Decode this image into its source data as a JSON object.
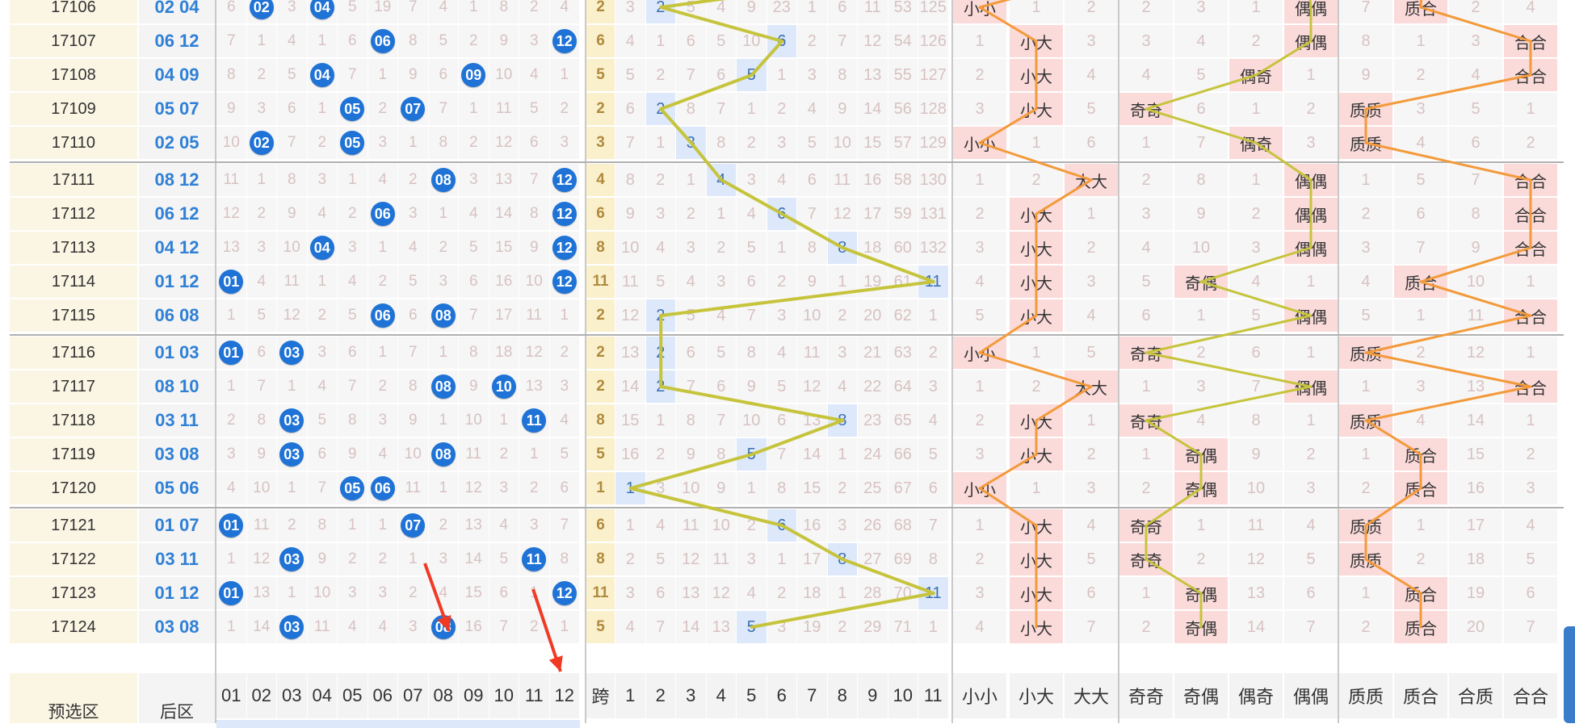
{
  "header_labels": {
    "numbers": [
      "01",
      "02",
      "03",
      "04",
      "05",
      "06",
      "07",
      "08",
      "09",
      "10",
      "11",
      "12"
    ],
    "span": "跨",
    "dist": [
      "1",
      "2",
      "3",
      "4",
      "5",
      "6",
      "7",
      "8",
      "9",
      "10",
      "11"
    ],
    "size": [
      "小小",
      "小大",
      "大大"
    ],
    "odd": [
      "奇奇",
      "奇偶",
      "偶奇",
      "偶偶"
    ],
    "prime": [
      "质质",
      "质合",
      "合质",
      "合合"
    ],
    "preselect": "预选区",
    "back_area": "后区"
  },
  "rows": [
    {
      "issue": "17106",
      "back": "02 04",
      "balls": [
        2,
        4
      ],
      "nums": [
        "6",
        "02",
        "3",
        "04",
        "5",
        "19",
        "7",
        "4",
        "1",
        "8",
        "2",
        "4"
      ],
      "span": "2",
      "hit": 2,
      "dist": [
        "3",
        "2",
        "5",
        "4",
        "9",
        "23",
        "1",
        "6",
        "11",
        "53",
        "125"
      ],
      "size_sel": 0,
      "size": [
        "小小",
        "1",
        "2"
      ],
      "odd_sel": 3,
      "odd": [
        "2",
        "3",
        "1",
        "偶偶"
      ],
      "prime_sel": 1,
      "prime": [
        "7",
        "质合",
        "2",
        "4"
      ]
    },
    {
      "issue": "17107",
      "back": "06 12",
      "balls": [
        6,
        12
      ],
      "nums": [
        "7",
        "1",
        "4",
        "1",
        "6",
        "06",
        "8",
        "5",
        "2",
        "9",
        "3",
        "12"
      ],
      "span": "6",
      "hit": 6,
      "dist": [
        "4",
        "1",
        "6",
        "5",
        "10",
        "6",
        "2",
        "7",
        "12",
        "54",
        "126"
      ],
      "size_sel": 1,
      "size": [
        "1",
        "小大",
        "3"
      ],
      "odd_sel": 3,
      "odd": [
        "3",
        "4",
        "2",
        "偶偶"
      ],
      "prime_sel": 3,
      "prime": [
        "8",
        "1",
        "3",
        "合合"
      ]
    },
    {
      "issue": "17108",
      "back": "04 09",
      "balls": [
        4,
        9
      ],
      "nums": [
        "8",
        "2",
        "5",
        "04",
        "7",
        "1",
        "9",
        "6",
        "09",
        "10",
        "4",
        "1"
      ],
      "span": "5",
      "hit": 5,
      "dist": [
        "5",
        "2",
        "7",
        "6",
        "5",
        "1",
        "3",
        "8",
        "13",
        "55",
        "127"
      ],
      "size_sel": 1,
      "size": [
        "2",
        "小大",
        "4"
      ],
      "odd_sel": 2,
      "odd": [
        "4",
        "5",
        "偶奇",
        "1"
      ],
      "prime_sel": 3,
      "prime": [
        "9",
        "2",
        "4",
        "合合"
      ]
    },
    {
      "issue": "17109",
      "back": "05 07",
      "balls": [
        5,
        7
      ],
      "nums": [
        "9",
        "3",
        "6",
        "1",
        "05",
        "2",
        "07",
        "7",
        "1",
        "11",
        "5",
        "2"
      ],
      "span": "2",
      "hit": 2,
      "dist": [
        "6",
        "2",
        "8",
        "7",
        "1",
        "2",
        "4",
        "9",
        "14",
        "56",
        "128"
      ],
      "size_sel": 1,
      "size": [
        "3",
        "小大",
        "5"
      ],
      "odd_sel": 0,
      "odd": [
        "奇奇",
        "6",
        "1",
        "2"
      ],
      "prime_sel": 0,
      "prime": [
        "质质",
        "3",
        "5",
        "1"
      ]
    },
    {
      "issue": "17110",
      "back": "02 05",
      "balls": [
        2,
        5
      ],
      "nums": [
        "10",
        "02",
        "7",
        "2",
        "05",
        "3",
        "1",
        "8",
        "2",
        "12",
        "6",
        "3"
      ],
      "span": "3",
      "hit": 3,
      "dist": [
        "7",
        "1",
        "3",
        "8",
        "2",
        "3",
        "5",
        "10",
        "15",
        "57",
        "129"
      ],
      "size_sel": 0,
      "size": [
        "小小",
        "1",
        "6"
      ],
      "odd_sel": 2,
      "odd": [
        "1",
        "7",
        "偶奇",
        "3"
      ],
      "prime_sel": 0,
      "prime": [
        "质质",
        "4",
        "6",
        "2"
      ]
    },
    {
      "issue": "17111",
      "back": "08 12",
      "balls": [
        8,
        12
      ],
      "nums": [
        "11",
        "1",
        "8",
        "3",
        "1",
        "4",
        "2",
        "08",
        "3",
        "13",
        "7",
        "12"
      ],
      "span": "4",
      "hit": 4,
      "dist": [
        "8",
        "2",
        "1",
        "4",
        "3",
        "4",
        "6",
        "11",
        "16",
        "58",
        "130"
      ],
      "size_sel": 2,
      "size": [
        "1",
        "2",
        "大大"
      ],
      "odd_sel": 3,
      "odd": [
        "2",
        "8",
        "1",
        "偶偶"
      ],
      "prime_sel": 3,
      "prime": [
        "1",
        "5",
        "7",
        "合合"
      ]
    },
    {
      "issue": "17112",
      "back": "06 12",
      "balls": [
        6,
        12
      ],
      "nums": [
        "12",
        "2",
        "9",
        "4",
        "2",
        "06",
        "3",
        "1",
        "4",
        "14",
        "8",
        "12"
      ],
      "span": "6",
      "hit": 6,
      "dist": [
        "9",
        "3",
        "2",
        "1",
        "4",
        "6",
        "7",
        "12",
        "17",
        "59",
        "131"
      ],
      "size_sel": 1,
      "size": [
        "2",
        "小大",
        "1"
      ],
      "odd_sel": 3,
      "odd": [
        "3",
        "9",
        "2",
        "偶偶"
      ],
      "prime_sel": 3,
      "prime": [
        "2",
        "6",
        "8",
        "合合"
      ]
    },
    {
      "issue": "17113",
      "back": "04 12",
      "balls": [
        4,
        12
      ],
      "nums": [
        "13",
        "3",
        "10",
        "04",
        "3",
        "1",
        "4",
        "2",
        "5",
        "15",
        "9",
        "12"
      ],
      "span": "8",
      "hit": 8,
      "dist": [
        "10",
        "4",
        "3",
        "2",
        "5",
        "1",
        "8",
        "8",
        "18",
        "60",
        "132"
      ],
      "size_sel": 1,
      "size": [
        "3",
        "小大",
        "2"
      ],
      "odd_sel": 3,
      "odd": [
        "4",
        "10",
        "3",
        "偶偶"
      ],
      "prime_sel": 3,
      "prime": [
        "3",
        "7",
        "9",
        "合合"
      ]
    },
    {
      "issue": "17114",
      "back": "01 12",
      "balls": [
        1,
        12
      ],
      "nums": [
        "01",
        "4",
        "11",
        "1",
        "4",
        "2",
        "5",
        "3",
        "6",
        "16",
        "10",
        "12"
      ],
      "span": "11",
      "hit": 11,
      "dist": [
        "11",
        "5",
        "4",
        "3",
        "6",
        "2",
        "9",
        "1",
        "19",
        "61",
        "11"
      ],
      "size_sel": 1,
      "size": [
        "4",
        "小大",
        "3"
      ],
      "odd_sel": 1,
      "odd": [
        "5",
        "奇偶",
        "4",
        "1"
      ],
      "prime_sel": 1,
      "prime": [
        "4",
        "质合",
        "10",
        "1"
      ]
    },
    {
      "issue": "17115",
      "back": "06 08",
      "balls": [
        6,
        8
      ],
      "nums": [
        "1",
        "5",
        "12",
        "2",
        "5",
        "06",
        "6",
        "08",
        "7",
        "17",
        "11",
        "1"
      ],
      "span": "2",
      "hit": 2,
      "dist": [
        "12",
        "2",
        "5",
        "4",
        "7",
        "3",
        "10",
        "2",
        "20",
        "62",
        "1"
      ],
      "size_sel": 1,
      "size": [
        "5",
        "小大",
        "4"
      ],
      "odd_sel": 3,
      "odd": [
        "6",
        "1",
        "5",
        "偶偶"
      ],
      "prime_sel": 3,
      "prime": [
        "5",
        "1",
        "11",
        "合合"
      ]
    },
    {
      "issue": "17116",
      "back": "01 03",
      "balls": [
        1,
        3
      ],
      "nums": [
        "01",
        "6",
        "03",
        "3",
        "6",
        "1",
        "7",
        "1",
        "8",
        "18",
        "12",
        "2"
      ],
      "span": "2",
      "hit": 2,
      "dist": [
        "13",
        "2",
        "6",
        "5",
        "8",
        "4",
        "11",
        "3",
        "21",
        "63",
        "2"
      ],
      "size_sel": 0,
      "size": [
        "小小",
        "1",
        "5"
      ],
      "odd_sel": 0,
      "odd": [
        "奇奇",
        "2",
        "6",
        "1"
      ],
      "prime_sel": 0,
      "prime": [
        "质质",
        "2",
        "12",
        "1"
      ]
    },
    {
      "issue": "17117",
      "back": "08 10",
      "balls": [
        8,
        10
      ],
      "nums": [
        "1",
        "7",
        "1",
        "4",
        "7",
        "2",
        "8",
        "08",
        "9",
        "10",
        "13",
        "3"
      ],
      "span": "2",
      "hit": 2,
      "dist": [
        "14",
        "2",
        "7",
        "6",
        "9",
        "5",
        "12",
        "4",
        "22",
        "64",
        "3"
      ],
      "size_sel": 2,
      "size": [
        "1",
        "2",
        "大大"
      ],
      "odd_sel": 3,
      "odd": [
        "1",
        "3",
        "7",
        "偶偶"
      ],
      "prime_sel": 3,
      "prime": [
        "1",
        "3",
        "13",
        "合合"
      ]
    },
    {
      "issue": "17118",
      "back": "03 11",
      "balls": [
        3,
        11
      ],
      "nums": [
        "2",
        "8",
        "03",
        "5",
        "8",
        "3",
        "9",
        "1",
        "10",
        "1",
        "11",
        "4"
      ],
      "span": "8",
      "hit": 8,
      "dist": [
        "15",
        "1",
        "8",
        "7",
        "10",
        "6",
        "13",
        "8",
        "23",
        "65",
        "4"
      ],
      "size_sel": 1,
      "size": [
        "2",
        "小大",
        "1"
      ],
      "odd_sel": 0,
      "odd": [
        "奇奇",
        "4",
        "8",
        "1"
      ],
      "prime_sel": 0,
      "prime": [
        "质质",
        "4",
        "14",
        "1"
      ]
    },
    {
      "issue": "17119",
      "back": "03 08",
      "balls": [
        3,
        8
      ],
      "nums": [
        "3",
        "9",
        "03",
        "6",
        "9",
        "4",
        "10",
        "08",
        "11",
        "2",
        "1",
        "5"
      ],
      "span": "5",
      "hit": 5,
      "dist": [
        "16",
        "2",
        "9",
        "8",
        "5",
        "7",
        "14",
        "1",
        "24",
        "66",
        "5"
      ],
      "size_sel": 1,
      "size": [
        "3",
        "小大",
        "2"
      ],
      "odd_sel": 1,
      "odd": [
        "1",
        "奇偶",
        "9",
        "2"
      ],
      "prime_sel": 1,
      "prime": [
        "1",
        "质合",
        "15",
        "2"
      ]
    },
    {
      "issue": "17120",
      "back": "05 06",
      "balls": [
        5,
        6
      ],
      "nums": [
        "4",
        "10",
        "1",
        "7",
        "05",
        "06",
        "11",
        "1",
        "12",
        "3",
        "2",
        "6"
      ],
      "span": "1",
      "hit": 1,
      "dist": [
        "1",
        "3",
        "10",
        "9",
        "1",
        "8",
        "15",
        "2",
        "25",
        "67",
        "6"
      ],
      "size_sel": 0,
      "size": [
        "小小",
        "1",
        "3"
      ],
      "odd_sel": 1,
      "odd": [
        "2",
        "奇偶",
        "10",
        "3"
      ],
      "prime_sel": 1,
      "prime": [
        "2",
        "质合",
        "16",
        "3"
      ]
    },
    {
      "issue": "17121",
      "back": "01 07",
      "balls": [
        1,
        7
      ],
      "nums": [
        "01",
        "11",
        "2",
        "8",
        "1",
        "1",
        "07",
        "2",
        "13",
        "4",
        "3",
        "7"
      ],
      "span": "6",
      "hit": 6,
      "dist": [
        "1",
        "4",
        "11",
        "10",
        "2",
        "6",
        "16",
        "3",
        "26",
        "68",
        "7"
      ],
      "size_sel": 1,
      "size": [
        "1",
        "小大",
        "4"
      ],
      "odd_sel": 0,
      "odd": [
        "奇奇",
        "1",
        "11",
        "4"
      ],
      "prime_sel": 0,
      "prime": [
        "质质",
        "1",
        "17",
        "4"
      ]
    },
    {
      "issue": "17122",
      "back": "03 11",
      "balls": [
        3,
        11
      ],
      "nums": [
        "1",
        "12",
        "03",
        "9",
        "2",
        "2",
        "1",
        "3",
        "14",
        "5",
        "11",
        "8"
      ],
      "span": "8",
      "hit": 8,
      "dist": [
        "2",
        "5",
        "12",
        "11",
        "3",
        "1",
        "17",
        "8",
        "27",
        "69",
        "8"
      ],
      "size_sel": 1,
      "size": [
        "2",
        "小大",
        "5"
      ],
      "odd_sel": 0,
      "odd": [
        "奇奇",
        "2",
        "12",
        "5"
      ],
      "prime_sel": 0,
      "prime": [
        "质质",
        "2",
        "18",
        "5"
      ]
    },
    {
      "issue": "17123",
      "back": "01 12",
      "balls": [
        1,
        12
      ],
      "nums": [
        "01",
        "13",
        "1",
        "10",
        "3",
        "3",
        "2",
        "4",
        "15",
        "6",
        "1",
        "12"
      ],
      "span": "11",
      "hit": 11,
      "dist": [
        "3",
        "6",
        "13",
        "12",
        "4",
        "2",
        "18",
        "1",
        "28",
        "70",
        "11"
      ],
      "size_sel": 1,
      "size": [
        "3",
        "小大",
        "6"
      ],
      "odd_sel": 1,
      "odd": [
        "1",
        "奇偶",
        "13",
        "6"
      ],
      "prime_sel": 1,
      "prime": [
        "1",
        "质合",
        "19",
        "6"
      ]
    },
    {
      "issue": "17124",
      "back": "03 08",
      "balls": [
        3,
        8
      ],
      "nums": [
        "1",
        "14",
        "03",
        "11",
        "4",
        "4",
        "3",
        "08",
        "16",
        "7",
        "2",
        "1"
      ],
      "span": "5",
      "hit": 5,
      "dist": [
        "4",
        "7",
        "14",
        "13",
        "5",
        "3",
        "19",
        "2",
        "29",
        "71",
        "1"
      ],
      "size_sel": 1,
      "size": [
        "4",
        "小大",
        "7"
      ],
      "odd_sel": 1,
      "odd": [
        "2",
        "奇偶",
        "14",
        "7"
      ],
      "prime_sel": 1,
      "prime": [
        "2",
        "质合",
        "20",
        "7"
      ]
    }
  ],
  "colors": {
    "ball": "#1f73d6",
    "back_text": "#2f80d6",
    "trend_blue": "#c6c43c",
    "trend_red": "#f39a3a",
    "annotation_arrow": "#f03a24"
  }
}
